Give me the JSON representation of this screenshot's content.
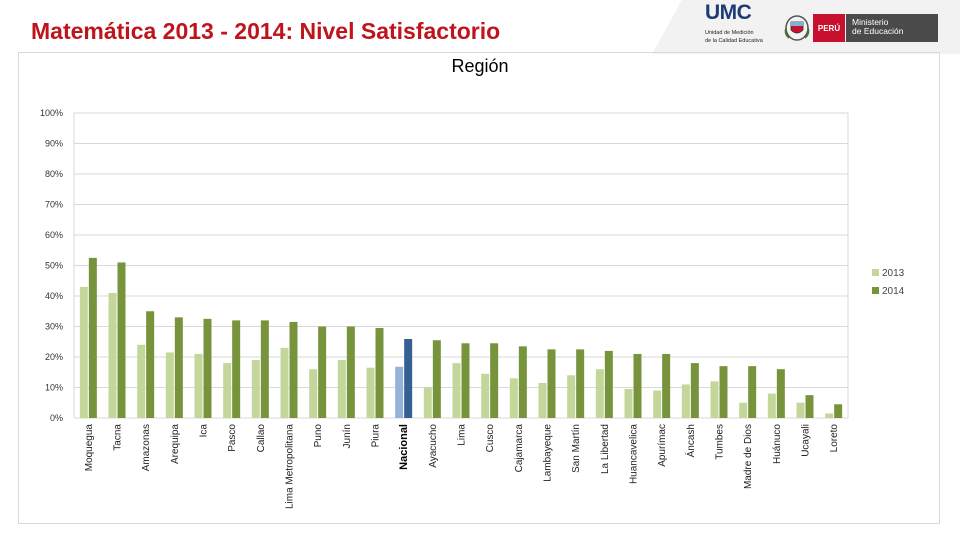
{
  "header": {
    "title": "Matemática 2013 - 2014: Nivel Satisfactorio",
    "umc_name": "UMC",
    "umc_sub_1": "Unidad de Medición",
    "umc_sub_2": "de la Calidad Educativa",
    "peru_label": "PERÚ",
    "ministerio_line1": "Ministerio",
    "ministerio_line2": "de Educación"
  },
  "colors": {
    "series_2013": "#c4d79b",
    "series_2014": "#77933c",
    "highlight_2013": "#95b3d7",
    "highlight_2014": "#376092",
    "title_red": "#c0141c",
    "grid": "#d9d9d9"
  },
  "chart_data": {
    "type": "bar",
    "title": "Región",
    "xlabel": "",
    "ylabel": "",
    "ylim": [
      0,
      100
    ],
    "yticks": [
      "0%",
      "10%",
      "20%",
      "30%",
      "40%",
      "50%",
      "60%",
      "70%",
      "80%",
      "90%",
      "100%"
    ],
    "highlight_category": "Nacional",
    "legend_position": "right",
    "categories": [
      "Moquegua",
      "Tacna",
      "Amazonas",
      "Arequipa",
      "Ica",
      "Pasco",
      "Callao",
      "Lima Metropolitana",
      "Puno",
      "Junín",
      "Piura",
      "Nacional",
      "Ayacucho",
      "Lima",
      "Cusco",
      "Cajamarca",
      "Lambayeque",
      "San Martín",
      "La Libertad",
      "Huancavelica",
      "Apurímac",
      "Áncash",
      "Tumbes",
      "Madre de Dios",
      "Huánuco",
      "Ucayali",
      "Loreto"
    ],
    "series": [
      {
        "name": "2013",
        "values": [
          43,
          41,
          24,
          21.5,
          21,
          18,
          19,
          23,
          16,
          19,
          16.5,
          16.8,
          10,
          18,
          14.5,
          13,
          11.5,
          14,
          16,
          9.5,
          9,
          11,
          12,
          5,
          8,
          5,
          1.5
        ]
      },
      {
        "name": "2014",
        "values": [
          52.5,
          51,
          35,
          33,
          32.5,
          32,
          32,
          31.5,
          30,
          30,
          29.5,
          25.9,
          25.5,
          24.5,
          24.5,
          23.5,
          22.5,
          22.5,
          22,
          21,
          21,
          18,
          17,
          17,
          16,
          7.5,
          4.5
        ]
      }
    ]
  }
}
